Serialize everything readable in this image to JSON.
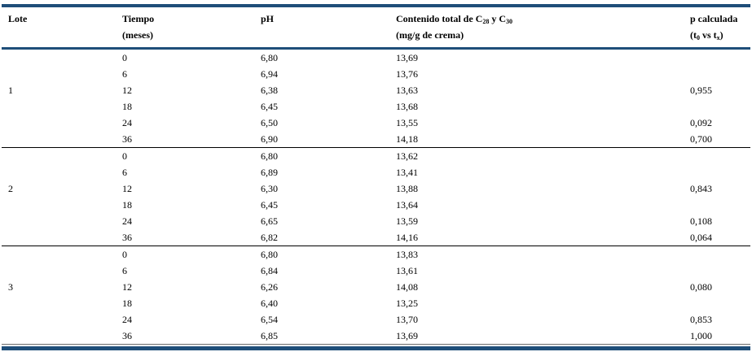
{
  "table": {
    "columns": {
      "lote": "Lote",
      "tiempo_line1": "Tiempo",
      "tiempo_line2": "(meses)",
      "ph": "pH",
      "contenido_part1": "Contenido total de C",
      "contenido_sub1": "28",
      "contenido_part2": " y C",
      "contenido_sub2": "30",
      "contenido_line2": "(mg/g de crema)",
      "p_line1": "p calculada",
      "p_part1": "(t",
      "p_sub1": "0",
      "p_part2": " vs t",
      "p_sub2": "x",
      "p_part3": ")"
    },
    "lote_display_row_index": 2,
    "groups": [
      {
        "lote": "1",
        "rows": [
          {
            "tiempo": "0",
            "ph": "6,80",
            "contenido": "13,69",
            "p": ""
          },
          {
            "tiempo": "6",
            "ph": "6,94",
            "contenido": "13,76",
            "p": ""
          },
          {
            "tiempo": "12",
            "ph": "6,38",
            "contenido": "13,63",
            "p": "0,955"
          },
          {
            "tiempo": "18",
            "ph": "6,45",
            "contenido": "13,68",
            "p": ""
          },
          {
            "tiempo": "24",
            "ph": "6,50",
            "contenido": "13,55",
            "p": "0,092"
          },
          {
            "tiempo": "36",
            "ph": "6,90",
            "contenido": "14,18",
            "p": "0,700"
          }
        ]
      },
      {
        "lote": "2",
        "rows": [
          {
            "tiempo": "0",
            "ph": "6,80",
            "contenido": "13,62",
            "p": ""
          },
          {
            "tiempo": "6",
            "ph": "6,89",
            "contenido": "13,41",
            "p": ""
          },
          {
            "tiempo": "12",
            "ph": "6,30",
            "contenido": "13,88",
            "p": "0,843"
          },
          {
            "tiempo": "18",
            "ph": "6,45",
            "contenido": "13,64",
            "p": ""
          },
          {
            "tiempo": "24",
            "ph": "6,65",
            "contenido": "13,59",
            "p": "0,108"
          },
          {
            "tiempo": "36",
            "ph": "6,82",
            "contenido": "14,16",
            "p": "0,064"
          }
        ]
      },
      {
        "lote": "3",
        "rows": [
          {
            "tiempo": "0",
            "ph": "6,80",
            "contenido": "13,83",
            "p": ""
          },
          {
            "tiempo": "6",
            "ph": "6,84",
            "contenido": "13,61",
            "p": ""
          },
          {
            "tiempo": "12",
            "ph": "6,26",
            "contenido": "14,08",
            "p": "0,080"
          },
          {
            "tiempo": "18",
            "ph": "6,40",
            "contenido": "13,25",
            "p": ""
          },
          {
            "tiempo": "24",
            "ph": "6,54",
            "contenido": "13,70",
            "p": "0,853"
          },
          {
            "tiempo": "36",
            "ph": "6,85",
            "contenido": "13,69",
            "p": "1,000"
          }
        ]
      }
    ],
    "colors": {
      "accent_border": "#1f4e79",
      "group_separator": "#000000",
      "text": "#000000",
      "background": "#ffffff"
    }
  }
}
